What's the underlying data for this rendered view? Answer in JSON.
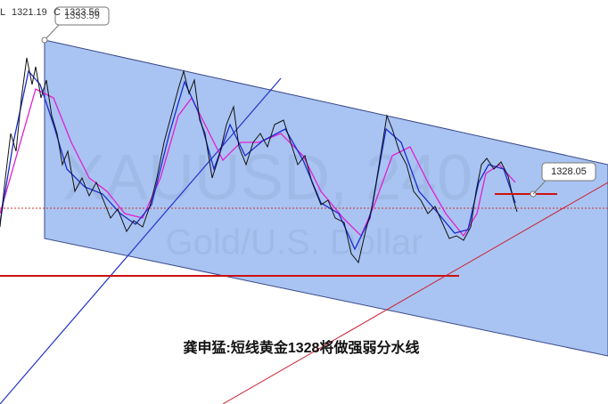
{
  "header": {
    "low_label": "L",
    "low": "1321.19",
    "close_label": "C",
    "close": "1323.56"
  },
  "callouts": [
    "1333.59",
    "1328.05"
  ],
  "watermark": {
    "symbol": "XAUUSD, 240",
    "name": "Gold/U.S. Dollar"
  },
  "caption": "龚申猛:短线黄金1328将做强弱分水线"
}
